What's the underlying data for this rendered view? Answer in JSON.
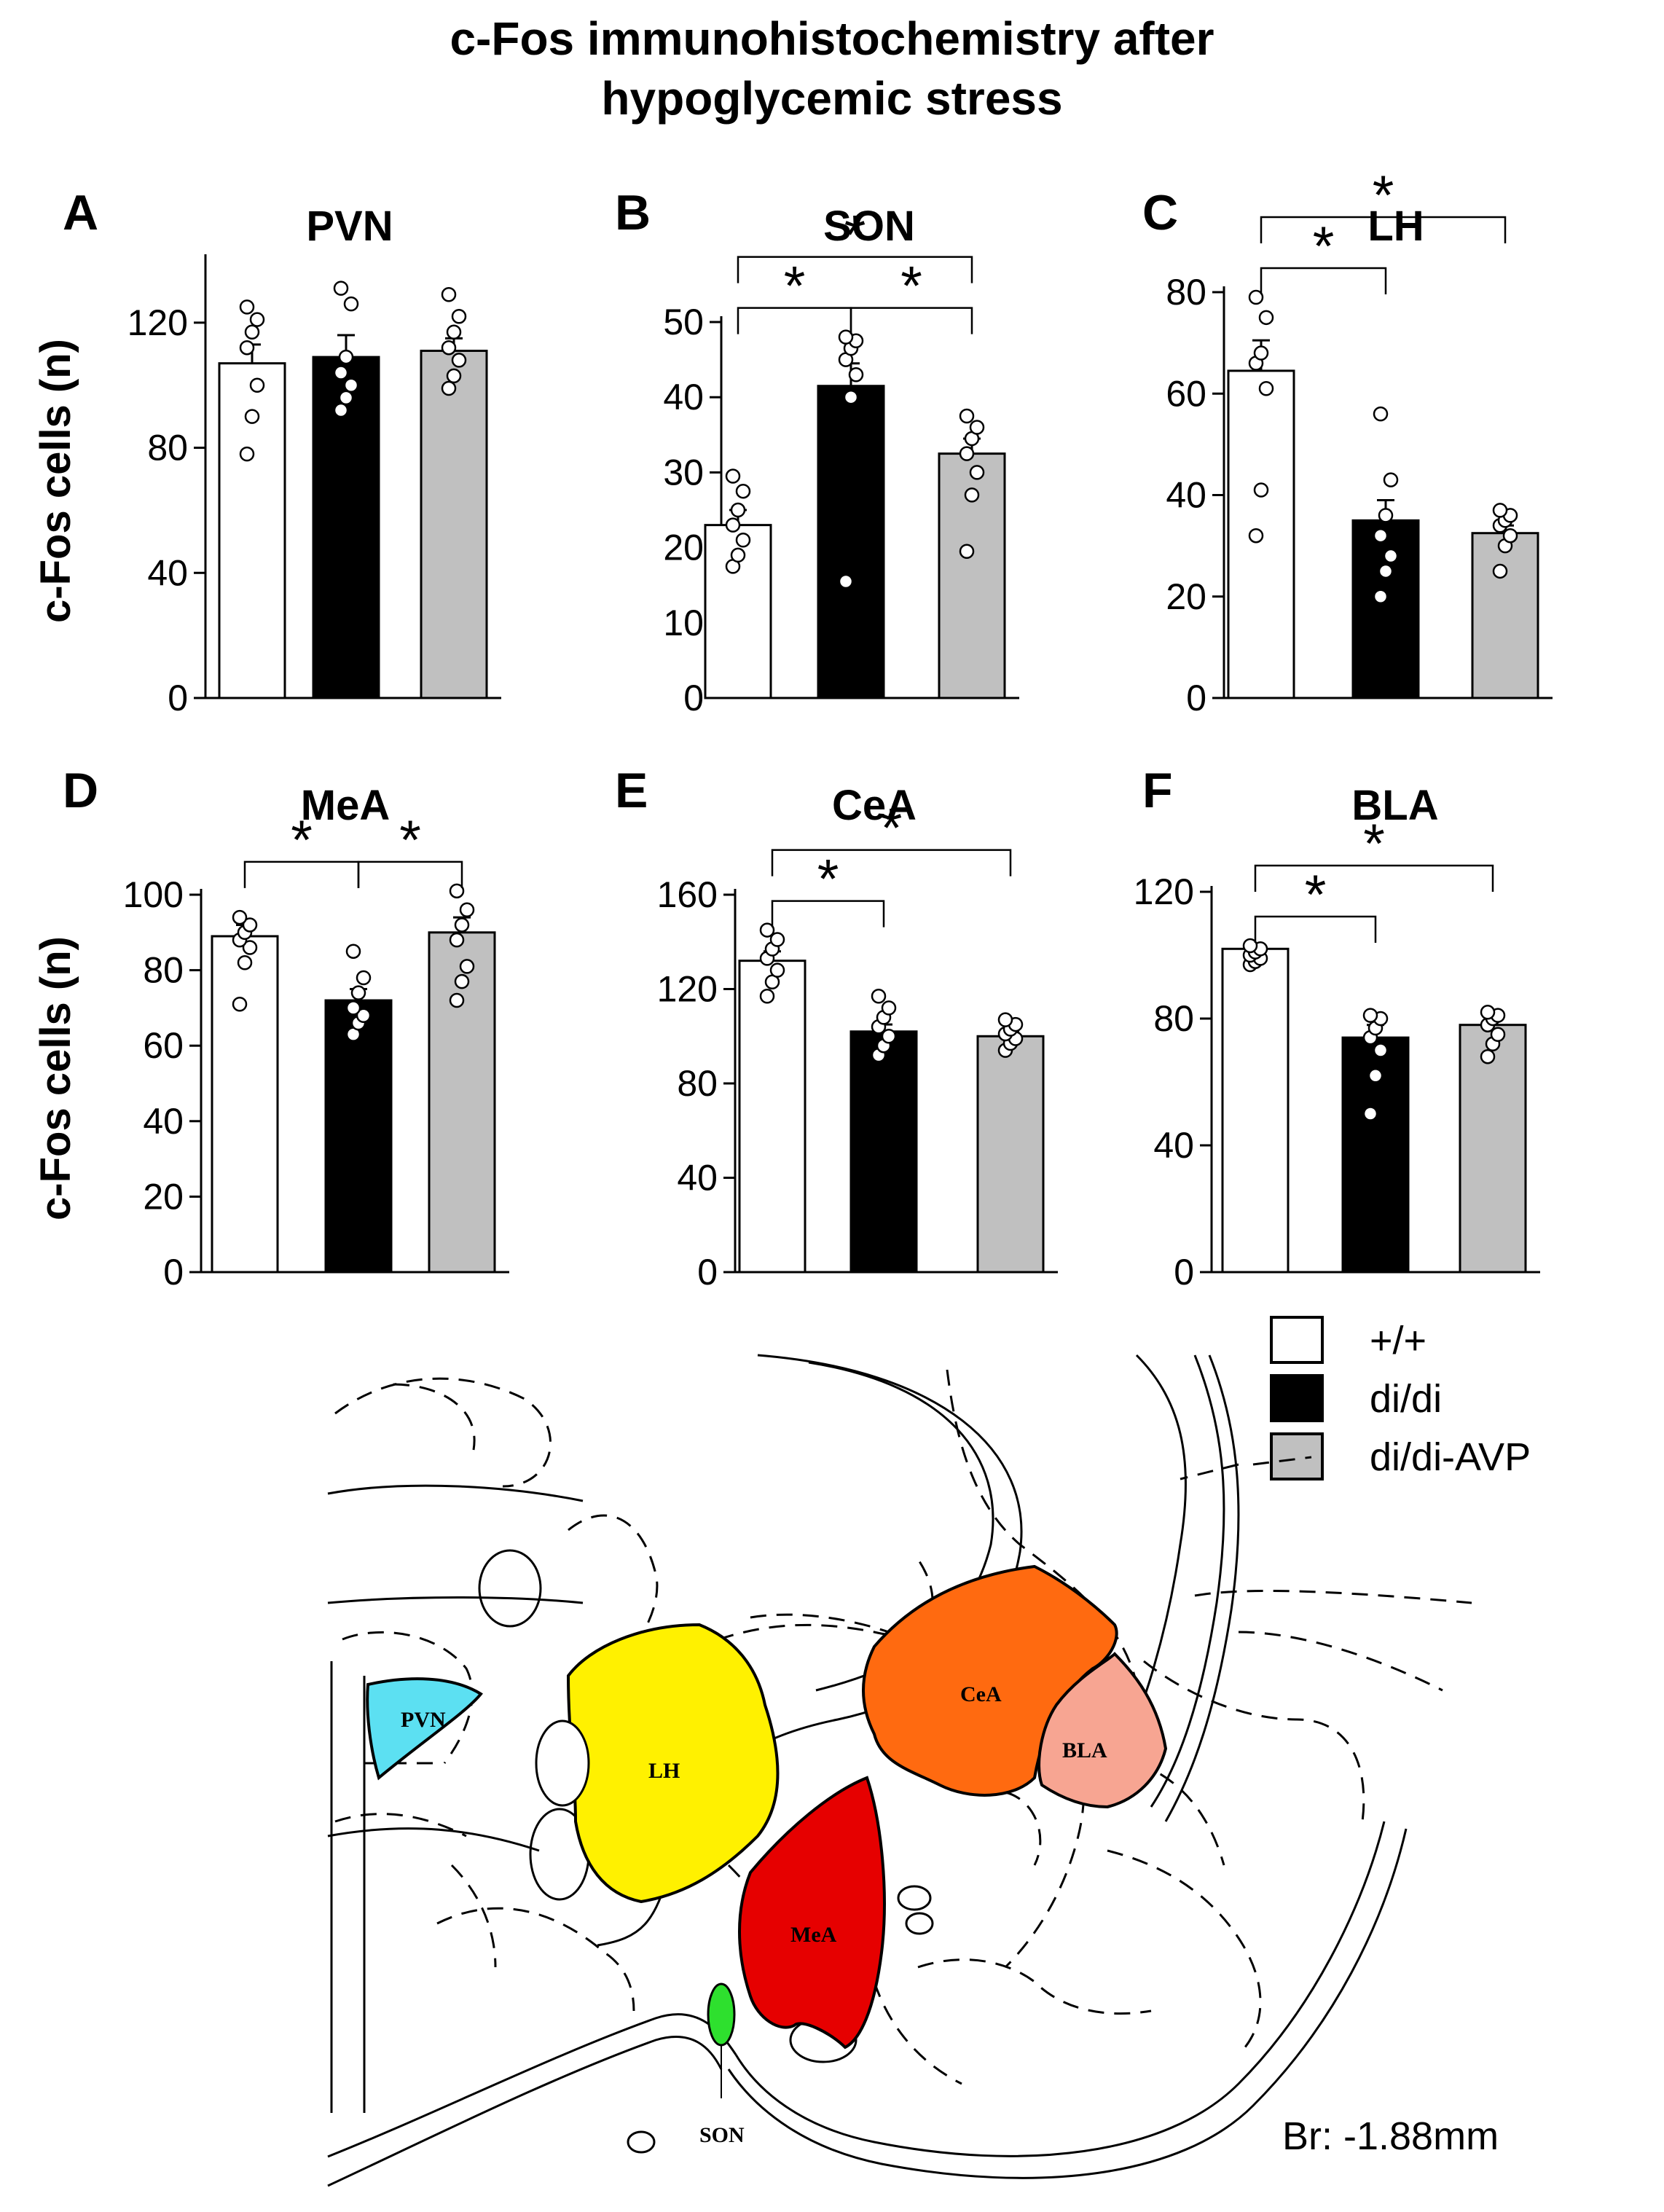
{
  "title": {
    "line1": "c-Fos immunohistochemistry  after",
    "line2": "hypoglycemic  stress"
  },
  "colors": {
    "wt": "#ffffff",
    "didi": "#000000",
    "avp": "#c0c0c0"
  },
  "legend": [
    {
      "label": "+/+",
      "color": "#ffffff"
    },
    {
      "label": "di/di",
      "color": "#000000"
    },
    {
      "label": "di/di-AVP",
      "color": "#c0c0c0"
    }
  ],
  "chart_data": [
    {
      "panel": "A",
      "title": "PVN",
      "type": "bar",
      "ylabel": "c-Fos cells (n)",
      "categories": [
        "+/+",
        "di/di",
        "di/di-AVP"
      ],
      "values": [
        107,
        109,
        111
      ],
      "errors": [
        6,
        7,
        4
      ],
      "yticks": [
        0,
        40,
        80,
        120
      ],
      "ylim": [
        0,
        140
      ],
      "points": [
        [
          78,
          90,
          100,
          112,
          117,
          121,
          125
        ],
        [
          92,
          96,
          100,
          104,
          109,
          126,
          131
        ],
        [
          99,
          103,
          108,
          112,
          117,
          122,
          129
        ]
      ],
      "significance": []
    },
    {
      "panel": "B",
      "title": "SON",
      "type": "bar",
      "ylabel": "",
      "categories": [
        "+/+",
        "di/di",
        "di/di-AVP"
      ],
      "values": [
        23,
        41.5,
        32.5
      ],
      "errors": [
        2,
        3,
        2
      ],
      "yticks": [
        0,
        10,
        20,
        30,
        40,
        50
      ],
      "ylim": [
        0,
        50
      ],
      "points": [
        [
          17.5,
          19,
          21,
          23,
          25,
          27.5,
          29.5
        ],
        [
          15.5,
          40,
          43,
          45,
          46.5,
          47.5,
          48
        ],
        [
          19.5,
          27,
          30,
          32.5,
          34.5,
          36,
          37.5
        ]
      ],
      "significance": [
        {
          "pair": [
            0,
            1
          ],
          "label": "*"
        },
        {
          "pair": [
            1,
            2
          ],
          "label": "*"
        },
        {
          "pair": [
            0,
            2
          ],
          "label": "*"
        }
      ]
    },
    {
      "panel": "C",
      "title": "LH",
      "type": "bar",
      "ylabel": "",
      "categories": [
        "+/+",
        "di/di",
        "di/di-AVP"
      ],
      "values": [
        64.5,
        35,
        32.5
      ],
      "errors": [
        6,
        4,
        1.5
      ],
      "yticks": [
        0,
        20,
        40,
        60,
        80
      ],
      "ylim": [
        0,
        80
      ],
      "points": [
        [
          32,
          41,
          61,
          66,
          68,
          75,
          79
        ],
        [
          20,
          25,
          28,
          32,
          36,
          43,
          56
        ],
        [
          25,
          30,
          32,
          34,
          35,
          36,
          37
        ]
      ],
      "significance": [
        {
          "pair": [
            0,
            1
          ],
          "label": "*"
        },
        {
          "pair": [
            0,
            2
          ],
          "label": "*"
        }
      ]
    },
    {
      "panel": "D",
      "title": "MeA",
      "type": "bar",
      "ylabel": "c-Fos cells (n)",
      "categories": [
        "+/+",
        "di/di",
        "di/di-AVP"
      ],
      "values": [
        89,
        72,
        90
      ],
      "errors": [
        3,
        3,
        4
      ],
      "yticks": [
        0,
        20,
        40,
        60,
        80,
        100
      ],
      "ylim": [
        0,
        100
      ],
      "points": [
        [
          71,
          82,
          86,
          88,
          90,
          92,
          94
        ],
        [
          63,
          66,
          68,
          70,
          74,
          78,
          85
        ],
        [
          72,
          77,
          81,
          88,
          92,
          96,
          101
        ]
      ],
      "significance": [
        {
          "pair": [
            0,
            1
          ],
          "label": "*"
        },
        {
          "pair": [
            1,
            2
          ],
          "label": "*"
        }
      ]
    },
    {
      "panel": "E",
      "title": "CeA",
      "type": "bar",
      "ylabel": "",
      "categories": [
        "+/+",
        "di/di",
        "di/di-AVP"
      ],
      "values": [
        132,
        102,
        100
      ],
      "errors": [
        4,
        3,
        2
      ],
      "yticks": [
        0,
        40,
        80,
        120,
        160
      ],
      "ylim": [
        0,
        160
      ],
      "points": [
        [
          117,
          123,
          128,
          133,
          137,
          141,
          145
        ],
        [
          92,
          96,
          100,
          104,
          108,
          112,
          117
        ],
        [
          94,
          97,
          99,
          101,
          103,
          105,
          107
        ]
      ],
      "significance": [
        {
          "pair": [
            0,
            1
          ],
          "label": "*"
        },
        {
          "pair": [
            0,
            2
          ],
          "label": "*"
        }
      ]
    },
    {
      "panel": "F",
      "title": "BLA",
      "type": "bar",
      "ylabel": "",
      "categories": [
        "+/+",
        "di/di",
        "di/di-AVP"
      ],
      "values": [
        102,
        74,
        78
      ],
      "errors": [
        1,
        4,
        2
      ],
      "yticks": [
        0,
        40,
        80,
        120
      ],
      "ylim": [
        0,
        120
      ],
      "points": [
        [
          97,
          98,
          99,
          100,
          101,
          102,
          103
        ],
        [
          50,
          62,
          70,
          74,
          77,
          80,
          81
        ],
        [
          68,
          72,
          75,
          78,
          80,
          81,
          82
        ]
      ],
      "significance": [
        {
          "pair": [
            0,
            1
          ],
          "label": "*"
        },
        {
          "pair": [
            0,
            2
          ],
          "label": "*"
        }
      ]
    }
  ],
  "atlas": {
    "regions": [
      {
        "label": "PVN",
        "color": "#5ce0f2"
      },
      {
        "label": "LH",
        "color": "#fff100"
      },
      {
        "label": "MeA",
        "color": "#e60000"
      },
      {
        "label": "CeA",
        "color": "#ff6a10"
      },
      {
        "label": "BLA",
        "color": "#f7a592"
      },
      {
        "label": "SON",
        "color": "#2ee02e"
      }
    ],
    "bregma_note": "Br: -1.88mm"
  }
}
